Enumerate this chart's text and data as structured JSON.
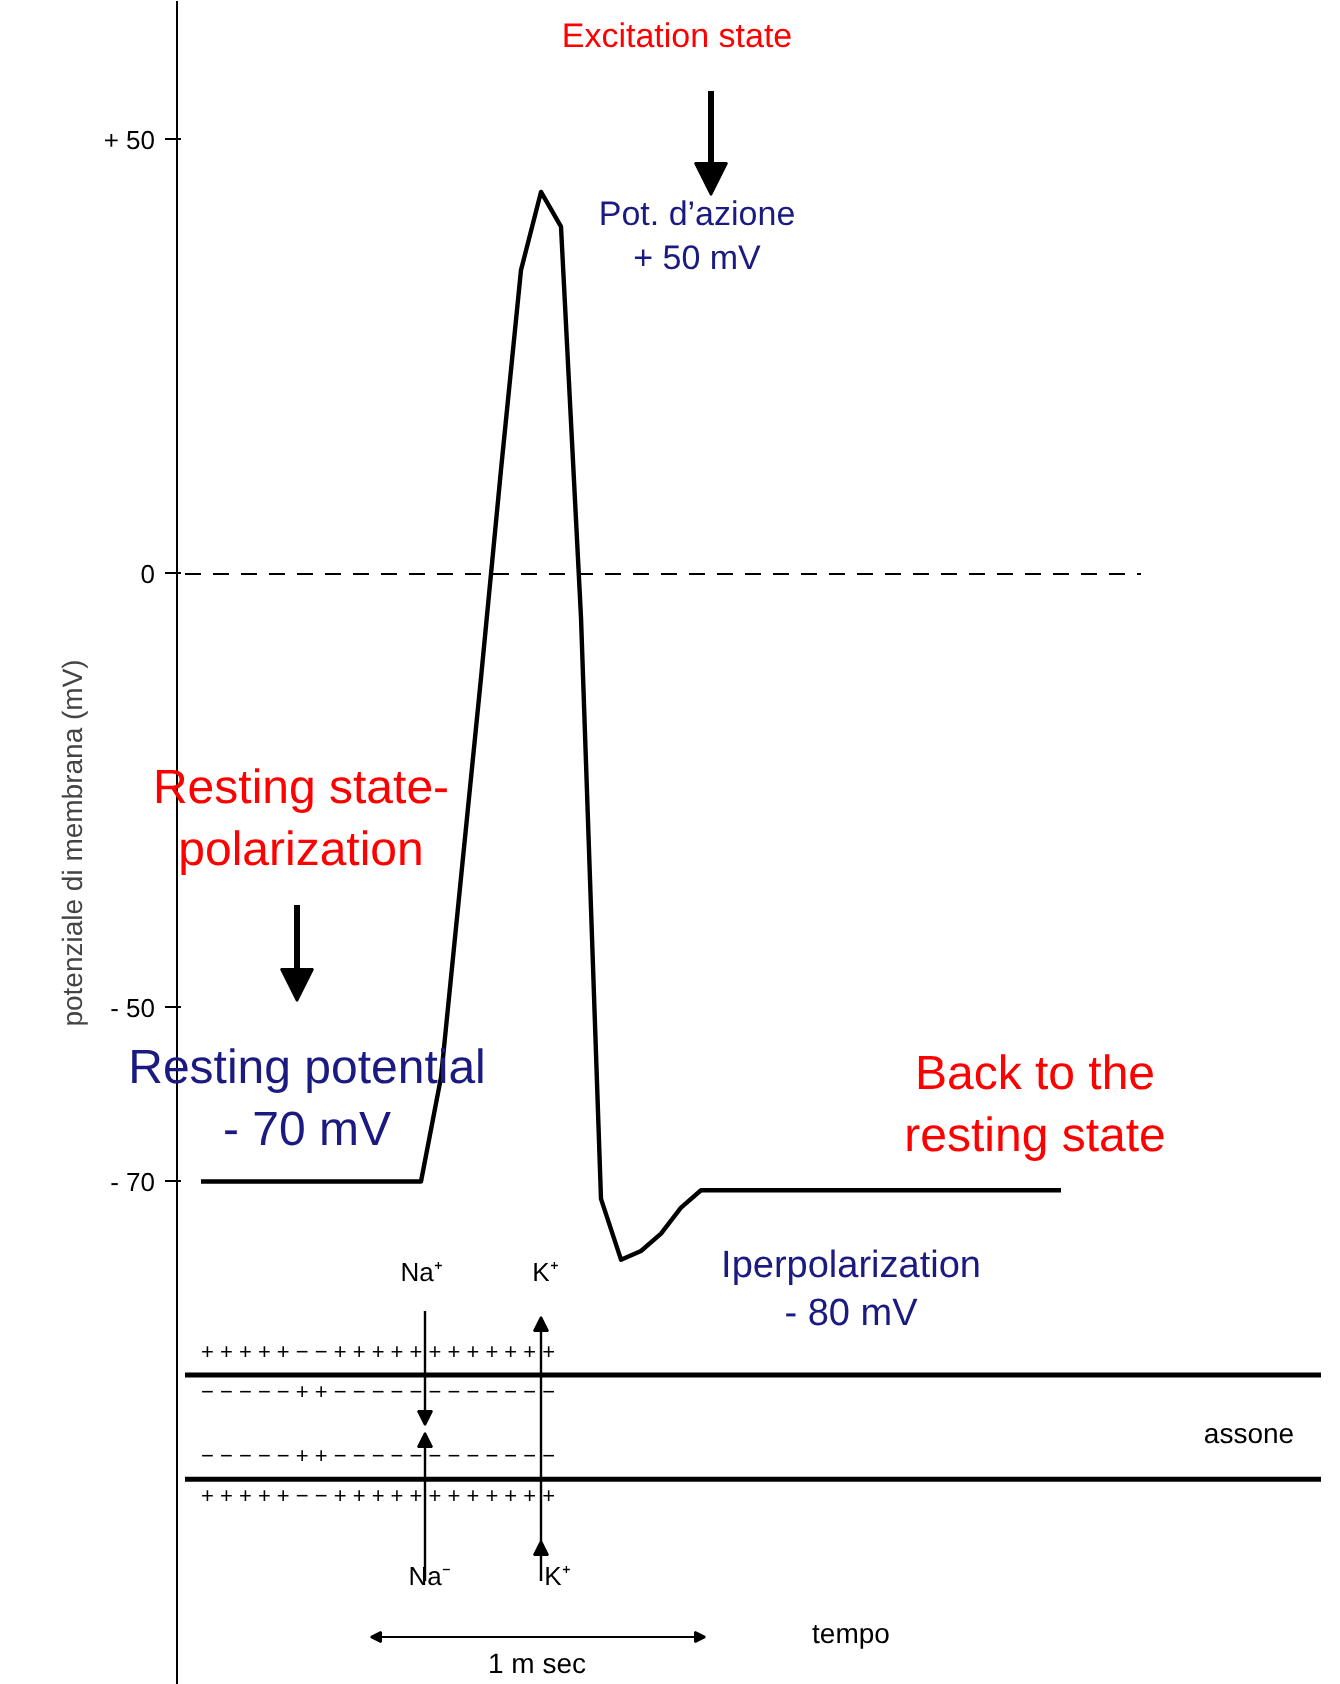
{
  "chart_data": {
    "type": "line",
    "ylabel": "potenziale di membrana (mV)",
    "categories": [
      null,
      null,
      null,
      null,
      null,
      null,
      null,
      null,
      null,
      null,
      null,
      null,
      null,
      null,
      null,
      null,
      null,
      null,
      null,
      null,
      null,
      null,
      null,
      null,
      null,
      null,
      null,
      null,
      null,
      null,
      null,
      null,
      null,
      null,
      null,
      null,
      null,
      null,
      null,
      null,
      null,
      null,
      null,
      null
    ],
    "series": [
      {
        "color": "#000000",
        "values": [
          -70,
          -70,
          -70,
          -70,
          -70,
          -70,
          -70,
          -70,
          -70,
          -70,
          -70,
          -70,
          -58,
          -35,
          -12,
          12,
          35,
          44,
          40,
          -5,
          -72,
          -79,
          -78,
          -76,
          -73,
          -71,
          -71,
          -71,
          -71,
          -71,
          -71,
          -71,
          -71,
          -71,
          -71,
          -71,
          -71,
          -71,
          -71,
          -71,
          -71,
          -71,
          -71,
          -71
        ]
      }
    ],
    "ylim": [
      -128,
      66
    ],
    "yticks": [
      {
        "value": 50,
        "label": "+ 50"
      },
      0,
      {
        "value": -50,
        "label": "- 50"
      },
      {
        "value": -70,
        "label": "- 70"
      }
    ],
    "tick_labels": "y",
    "grid": false,
    "marker": "none",
    "line_style": "solid",
    "ref_lines": [
      {
        "axis": "y",
        "value": 0,
        "label": null,
        "line_style": "dashed",
        "color": "#000000"
      },
      {
        "axis": "y",
        "value": -92.3,
        "label": null,
        "line_style": "solid",
        "color": "#000000"
      },
      {
        "axis": "y",
        "value": -104.3,
        "label": null,
        "line_style": "solid",
        "color": "#000000"
      }
    ],
    "annotations": [
      "Excitation state",
      "Pot. d’azione\n+ 50 mV",
      "Resting state-\npolarization",
      "Resting potential\n- 70 mV",
      "Back to the\nresting state",
      "Iperpolarization\n- 80 mV",
      "Na⁺",
      "K⁺",
      "Na⁻",
      "K⁺",
      "assone",
      "tempo",
      "1 m sec",
      "+   +   +   +   +   −   −   +   +   +   +   +   +   +   +   +   +   +   +",
      "−   −   −   −   −   +   +   −   −   −   −   −   −   −   −   −   −   −   −",
      "−   −   −   −   −   +   +   −   −   −   −   −   −   −   −   −   −   −   −",
      "+   +   +   +   +   −   −   +   +   +   +   +   +   +   +   +   +   +   +"
    ]
  }
}
